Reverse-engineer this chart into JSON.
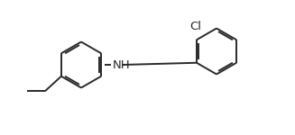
{
  "bg_color": "#ffffff",
  "line_color": "#2a2a2a",
  "line_width": 1.4,
  "Cl_label": "Cl",
  "NH_label": "NH",
  "font_size": 9.5,
  "fig_width": 3.27,
  "fig_height": 1.5,
  "dpi": 100,
  "xlim": [
    0,
    10.5
  ],
  "ylim": [
    0,
    5.0
  ]
}
